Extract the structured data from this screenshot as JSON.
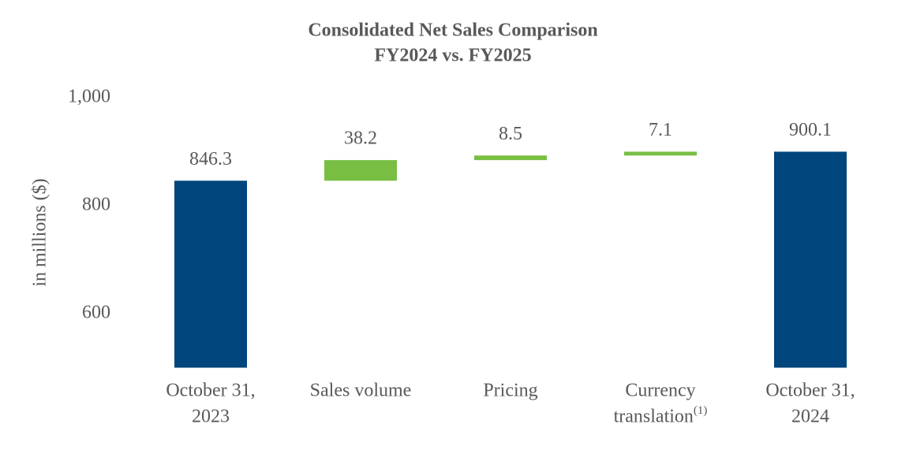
{
  "chart_data": {
    "type": "waterfall",
    "title": "Consolidated Net Sales Comparison",
    "subtitle": "FY2024 vs. FY2025",
    "y_label": "in millions ($)",
    "categories": [
      [
        "October 31,",
        "2023"
      ],
      [
        "Sales volume"
      ],
      [
        "Pricing"
      ],
      [
        "Currency",
        "translation"
      ],
      [
        "October 31,",
        "2024"
      ]
    ],
    "category_superscripts": [
      null,
      null,
      null,
      "(1)",
      null
    ],
    "values": [
      846.3,
      38.2,
      8.5,
      7.1,
      900.1
    ],
    "bar_kinds": [
      "total",
      "increase",
      "increase",
      "increase",
      "total"
    ],
    "colors": {
      "total": "#00457c",
      "increase": "#78be43"
    },
    "ylim": [
      500,
      1000
    ],
    "yticks": [
      {
        "value": 1000,
        "label": "1,000"
      },
      800,
      600
    ],
    "grid": false
  }
}
